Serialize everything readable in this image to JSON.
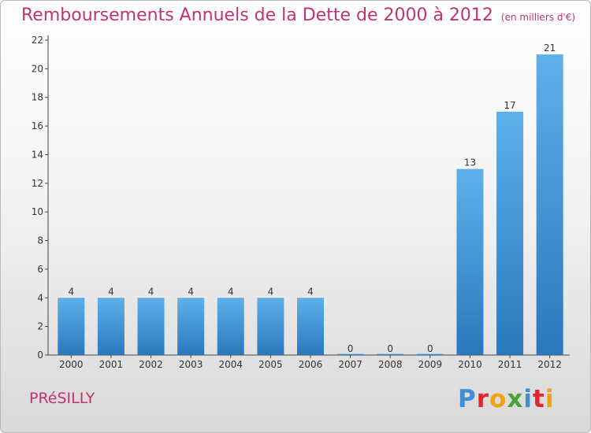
{
  "title": "Remboursements Annuels de la Dette de 2000 à 2012",
  "subtitle": "(en milliers d'€)",
  "location": "PRéSILLY",
  "logo": {
    "letters": [
      "P",
      "r",
      "o",
      "x",
      "i",
      "t",
      "i"
    ],
    "colors": [
      "#3d8fd6",
      "#e2262b",
      "#f2a20e",
      "#4aa23a",
      "#3d8fd6",
      "#e2262b",
      "#f2a20e"
    ]
  },
  "colors": {
    "title": "#c0336f",
    "bar_top": "#5fb0ea",
    "bar_bottom": "#2a78bc"
  },
  "chart_data": {
    "type": "bar",
    "title": "Remboursements Annuels de la Dette de 2000 à 2012",
    "subtitle": "(en milliers d'€)",
    "categories": [
      "2000",
      "2001",
      "2002",
      "2003",
      "2004",
      "2005",
      "2006",
      "2007",
      "2008",
      "2009",
      "2010",
      "2011",
      "2012"
    ],
    "values": [
      4,
      4,
      4,
      4,
      4,
      4,
      4,
      0,
      0,
      0,
      13,
      17,
      21
    ],
    "value_labels": [
      "4",
      "4",
      "4",
      "4",
      "4",
      "4",
      "4",
      "0",
      "0",
      "0",
      "13",
      "17",
      "21"
    ],
    "ylim": [
      0,
      22
    ],
    "yticks": [
      0,
      2,
      4,
      6,
      8,
      10,
      12,
      14,
      16,
      18,
      20,
      22
    ],
    "grid": false,
    "xlabel": "",
    "ylabel": ""
  }
}
